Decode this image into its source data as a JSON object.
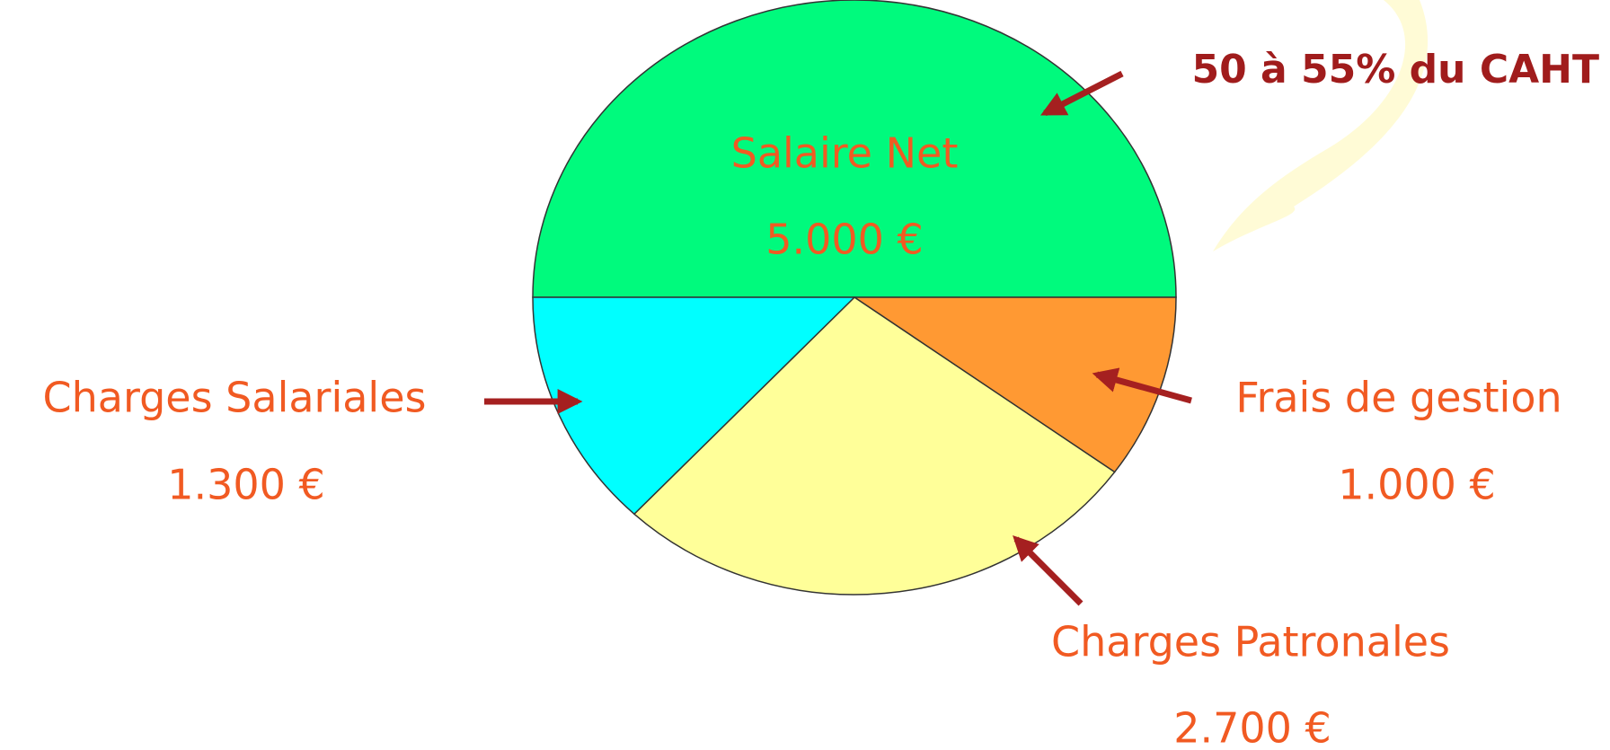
{
  "chart_data": {
    "type": "pie",
    "categories": [
      "Salaire Net",
      "Frais de gestion",
      "Charges Patronales",
      "Charges Salariales"
    ],
    "values": [
      5000,
      1000,
      2700,
      1300
    ],
    "value_labels": [
      "5.000 €",
      "1.000 €",
      "2.700 €",
      "1.300 €"
    ],
    "colors": [
      "#00fa7d",
      "#ff9933",
      "#ffff99",
      "#00ffff"
    ],
    "annotation": "50 à 55% du CAHT"
  }
}
